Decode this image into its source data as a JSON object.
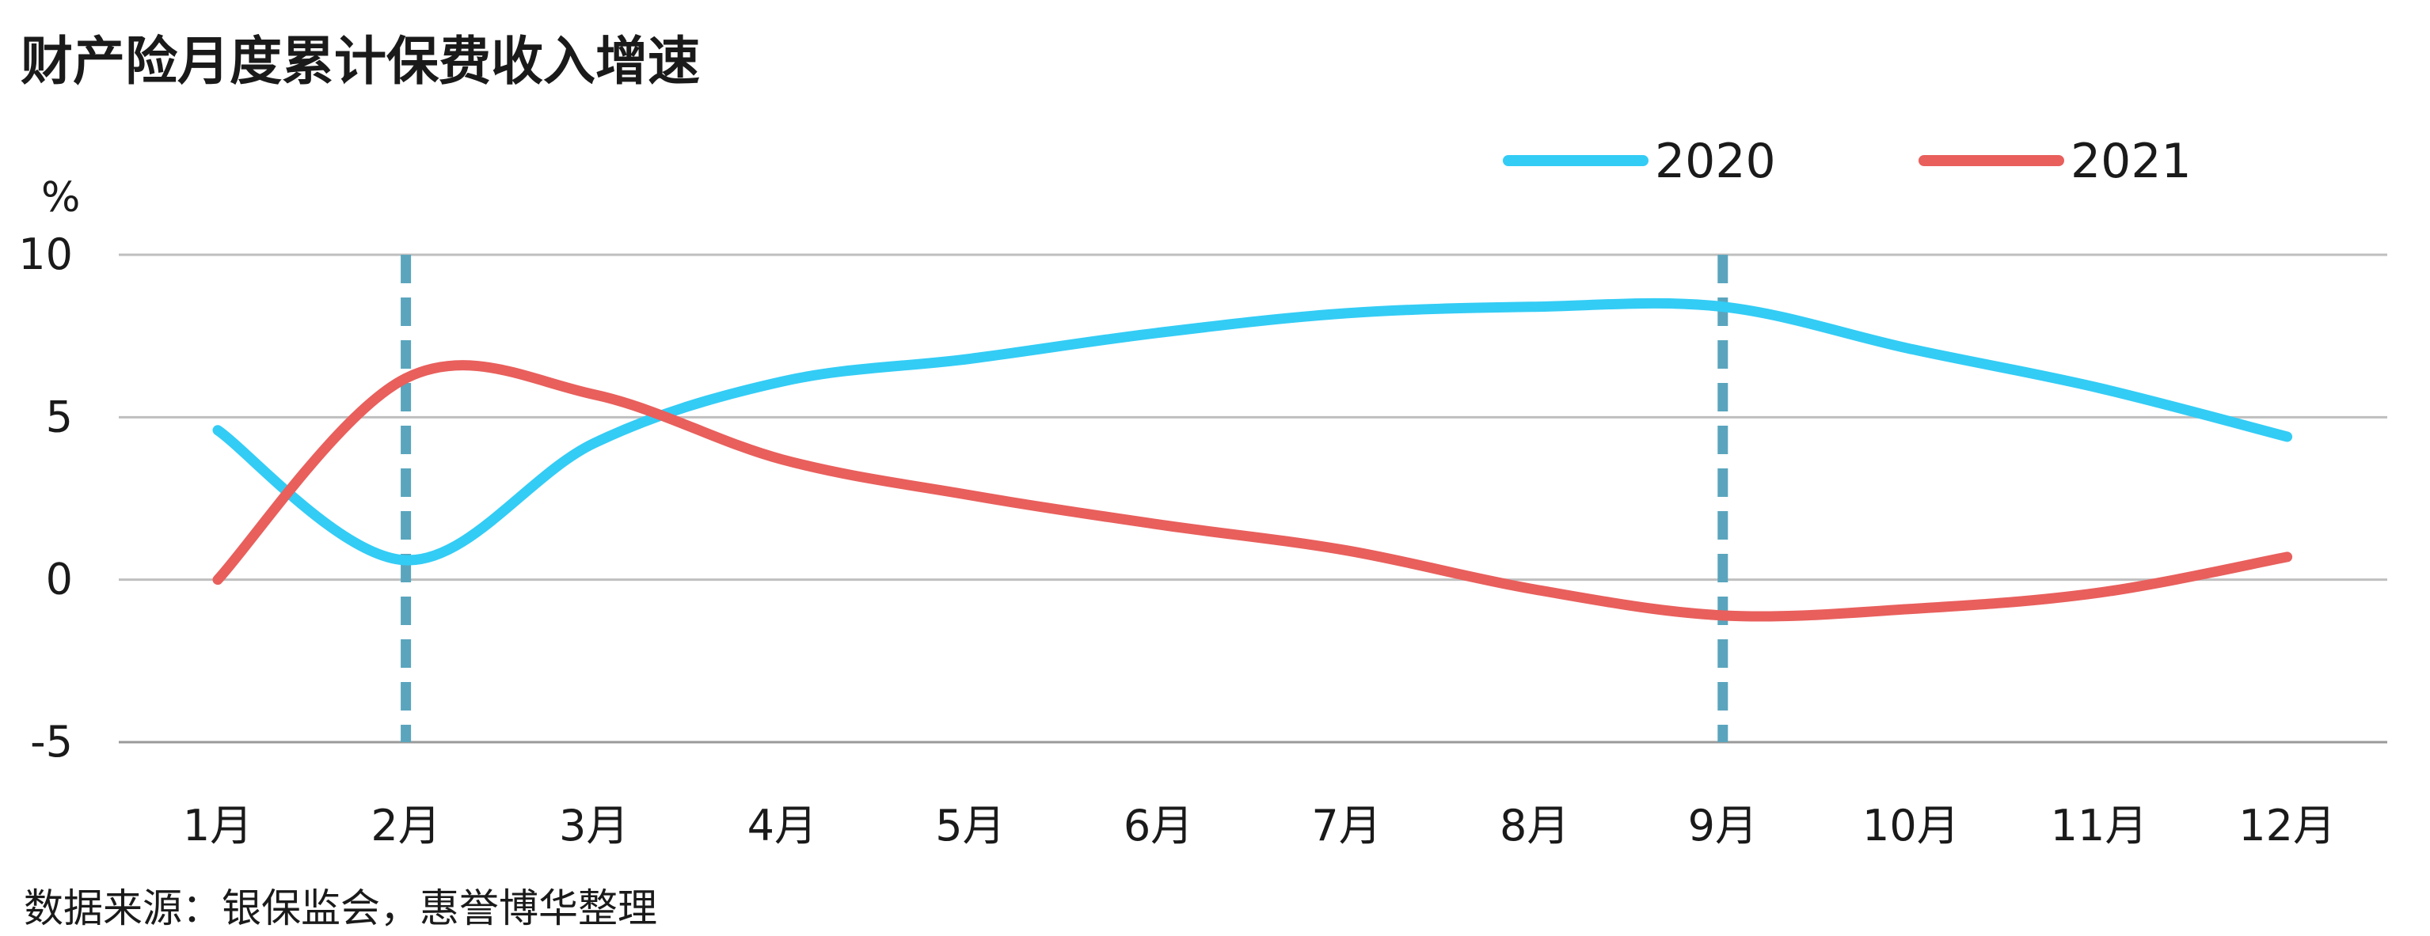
{
  "title": "财产险月度累计保费收入增速",
  "source": "数据来源：银保监会，惠誉博华整理",
  "unit": "%",
  "colors": {
    "series_2020": "#33ccf5",
    "series_2021": "#e85f5c",
    "marker": "#5aa5bd"
  },
  "chart_data": {
    "type": "line",
    "categories": [
      "1月",
      "2月",
      "3月",
      "4月",
      "5月",
      "6月",
      "7月",
      "8月",
      "9月",
      "10月",
      "11月",
      "12月"
    ],
    "series": [
      {
        "name": "2020",
        "values": [
          4.6,
          0.6,
          4.2,
          6.1,
          6.8,
          7.6,
          8.2,
          8.4,
          8.4,
          7.1,
          5.9,
          4.4
        ]
      },
      {
        "name": "2021",
        "values": [
          0.0,
          6.2,
          5.7,
          3.7,
          2.6,
          1.7,
          0.9,
          -0.3,
          -1.1,
          -0.9,
          -0.4,
          0.7
        ]
      }
    ],
    "y_ticks": [
      "10",
      "5",
      "0",
      "-5"
    ],
    "ylim": [
      -5,
      10
    ],
    "grid": true,
    "legend": "top-right",
    "highlight_categories": [
      "2月",
      "9月"
    ],
    "xlabel": "",
    "ylabel": "%"
  }
}
